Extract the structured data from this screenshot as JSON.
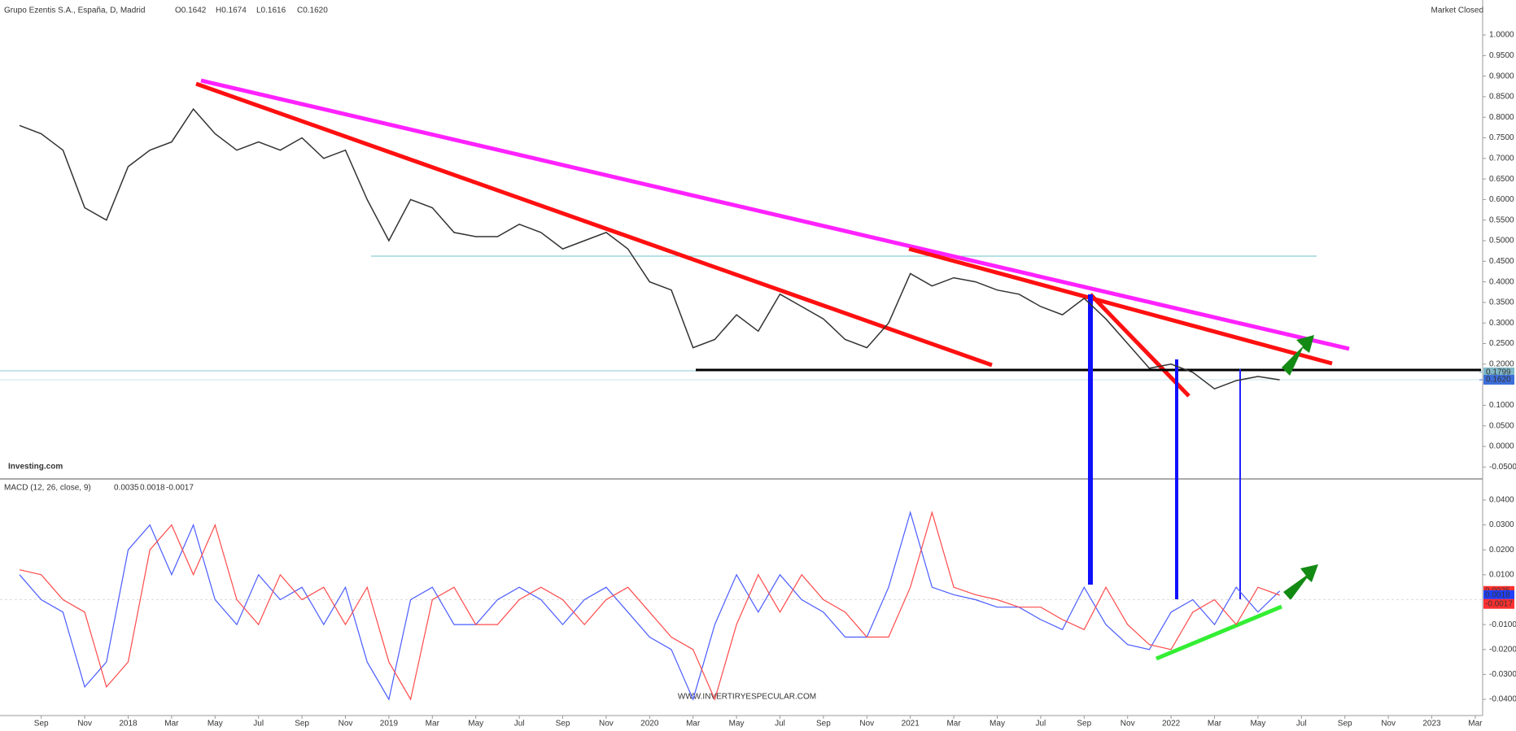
{
  "chart_data": [
    {
      "type": "line",
      "title": "Grupo Ezentis S.A., España, D, Madrid",
      "ohlc": [
        "O0.1642",
        "H0.1674",
        "L0.1616",
        "C0.1620"
      ],
      "status": "Market Closed",
      "brand": "Investing.com",
      "categories": [
        null,
        "Sep",
        null,
        "Nov",
        null,
        "2018",
        null,
        "Mar",
        null,
        "May",
        null,
        "Jul",
        null,
        "Sep",
        null,
        "Nov",
        null,
        "2019",
        null,
        "Mar",
        null,
        "May",
        null,
        "Jul",
        null,
        "Sep",
        null,
        "Nov",
        null,
        "2020",
        null,
        "Mar",
        null,
        "May",
        null,
        "Jul",
        null,
        "Sep",
        null,
        "Nov",
        null,
        "2021",
        null,
        "Mar",
        null,
        "May",
        null,
        "Jul",
        null,
        "Sep",
        null,
        "Nov",
        null,
        "2022",
        null,
        "Mar",
        null,
        "May",
        null,
        "Jul",
        null,
        "Sep",
        null,
        "Nov",
        null,
        "2023",
        null,
        "Mar"
      ],
      "values": [
        0.78,
        0.76,
        0.72,
        0.58,
        0.55,
        0.68,
        0.72,
        0.74,
        0.82,
        0.76,
        0.72,
        0.74,
        0.72,
        0.75,
        0.7,
        0.72,
        0.6,
        0.5,
        0.6,
        0.58,
        0.52,
        0.51,
        0.51,
        0.54,
        0.52,
        0.48,
        0.5,
        0.52,
        0.48,
        0.4,
        0.38,
        0.24,
        0.26,
        0.32,
        0.28,
        0.37,
        0.34,
        0.31,
        0.26,
        0.24,
        0.3,
        0.42,
        0.39,
        0.41,
        0.4,
        0.38,
        0.37,
        0.34,
        0.32,
        0.36,
        0.31,
        0.25,
        0.19,
        0.2,
        0.18,
        0.14,
        0.16,
        0.17,
        0.162,
        null,
        null,
        null,
        null,
        null,
        null,
        null,
        null,
        null
      ],
      "color": "#333333",
      "ylim": [
        -0.079,
        1.085
      ],
      "yticks": [
        {
          "value": 1.0,
          "label": "1.0000"
        },
        {
          "value": 0.95,
          "label": "0.9500"
        },
        {
          "value": 0.9,
          "label": "0.9000"
        },
        {
          "value": 0.85,
          "label": "0.8500"
        },
        {
          "value": 0.8,
          "label": "0.8000"
        },
        {
          "value": 0.75,
          "label": "0.7500"
        },
        {
          "value": 0.7,
          "label": "0.7000"
        },
        {
          "value": 0.65,
          "label": "0.6500"
        },
        {
          "value": 0.6,
          "label": "0.6000"
        },
        {
          "value": 0.55,
          "label": "0.5500"
        },
        {
          "value": 0.5,
          "label": "0.5000"
        },
        {
          "value": 0.45,
          "label": "0.4500"
        },
        {
          "value": 0.4,
          "label": "0.4000"
        },
        {
          "value": 0.35,
          "label": "0.3500"
        },
        {
          "value": 0.3,
          "label": "0.3000"
        },
        {
          "value": 0.25,
          "label": "0.2500"
        },
        {
          "value": 0.2,
          "label": "0.2000"
        },
        {
          "value": 0.1,
          "label": "0.1000"
        },
        {
          "value": 0.05,
          "label": "0.0500"
        },
        {
          "value": 0.0,
          "label": "0.0000"
        },
        {
          "value": -0.05,
          "label": "-0.0500"
        }
      ],
      "price_tags": [
        {
          "value": 0.1799,
          "label": "0.1799",
          "color": "#7fb8c8"
        },
        {
          "value": 0.162,
          "label": "0.1620",
          "color": "#3d6fd9"
        }
      ]
    },
    {
      "type": "line",
      "title": "MACD (12, 26, close, 9)",
      "series": [
        {
          "color": "#4a5cff",
          "values": [
            0.01,
            0,
            -0.005,
            -0.035,
            -0.025,
            0.02,
            0.03,
            0.01,
            0.03,
            0,
            -0.01,
            0.01,
            0,
            0.005,
            -0.01,
            0.005,
            -0.025,
            -0.04,
            0,
            0.005,
            -0.01,
            -0.01,
            0,
            0.005,
            0,
            -0.01,
            0,
            0.005,
            -0.005,
            -0.015,
            -0.02,
            -0.04,
            -0.01,
            0.01,
            -0.005,
            0.01,
            0,
            -0.005,
            -0.015,
            -0.015,
            0.005,
            0.035,
            0.005,
            0.002,
            0,
            -0.003,
            -0.003,
            -0.008,
            -0.012,
            0.005,
            -0.01,
            -0.018,
            -0.02,
            -0.005,
            0,
            -0.01,
            0.005,
            -0.005,
            0.0035,
            null,
            null,
            null,
            null,
            null,
            null,
            null,
            null,
            null
          ]
        },
        {
          "color": "#ff4a4a",
          "values": [
            0.012,
            0.01,
            0,
            -0.005,
            -0.035,
            -0.025,
            0.02,
            0.03,
            0.01,
            0.03,
            0,
            -0.01,
            0.01,
            0,
            0.005,
            -0.01,
            0.005,
            -0.025,
            -0.04,
            0,
            0.005,
            -0.01,
            -0.01,
            0,
            0.005,
            0,
            -0.01,
            0,
            0.005,
            -0.005,
            -0.015,
            -0.02,
            -0.04,
            -0.01,
            0.01,
            -0.005,
            0.01,
            0,
            -0.005,
            -0.015,
            -0.015,
            0.005,
            0.035,
            0.005,
            0.002,
            0,
            -0.003,
            -0.003,
            -0.008,
            -0.012,
            0.005,
            -0.01,
            -0.018,
            -0.02,
            -0.005,
            0,
            -0.01,
            0.005,
            0.0018,
            null,
            null,
            null,
            null,
            null,
            null,
            null,
            null,
            null
          ]
        }
      ],
      "legend_values": [
        {
          "value": 0.0035,
          "color": "#ff3030"
        },
        {
          "value": 0.0018,
          "color": "#2040ff"
        },
        {
          "value": -0.0017,
          "color": "#ff3030"
        }
      ],
      "ylim": [
        -0.0465,
        0.0478
      ],
      "yticks": [
        {
          "value": 0.04,
          "label": "0.0400"
        },
        {
          "value": 0.03,
          "label": "0.0300"
        },
        {
          "value": 0.02,
          "label": "0.0200"
        },
        {
          "value": 0.01,
          "label": "0.0100"
        },
        {
          "value": -0.01,
          "label": "-0.0100"
        },
        {
          "value": -0.02,
          "label": "-0.0200"
        },
        {
          "value": -0.03,
          "label": "-0.0300"
        },
        {
          "value": -0.04,
          "label": "-0.0400"
        }
      ]
    }
  ],
  "watermark": "WWW.INVERTIRYESPECULAR.COM"
}
